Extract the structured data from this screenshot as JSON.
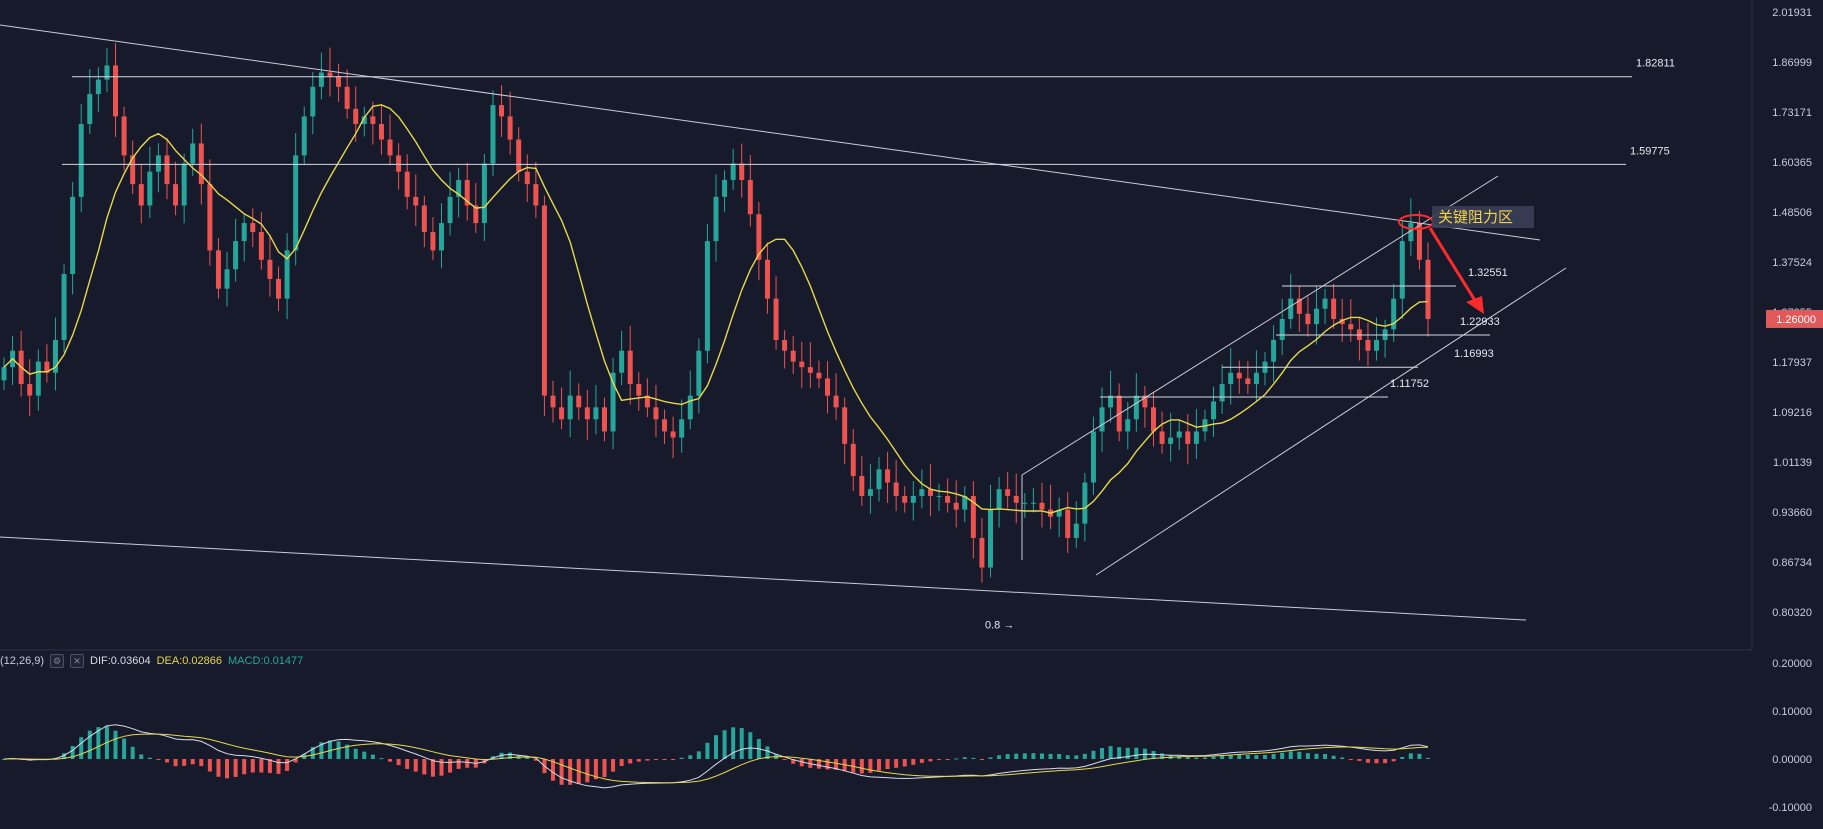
{
  "chart_data": [
    {
      "type": "candlestick",
      "title": "",
      "price_axis": {
        "ticks": [
          "2.01931",
          "1.86999",
          "1.73171",
          "1.60365",
          "1.48506",
          "1.37524",
          "1.27355",
          "1.17937",
          "1.09216",
          "1.01139",
          "0.93660",
          "0.86734",
          "0.80320"
        ],
        "current_price": "1.26000",
        "current_color": "#e05a5a"
      },
      "levels": [
        {
          "label": "1.82811",
          "value": 1.82811
        },
        {
          "label": "1.59775",
          "value": 1.59775
        },
        {
          "label": "1.32551",
          "value": 1.32551
        },
        {
          "label": "1.22933",
          "value": 1.22933
        },
        {
          "label": "1.16993",
          "value": 1.16993
        },
        {
          "label": "1.11752",
          "value": 1.11752
        }
      ],
      "low_marker": {
        "label": "0.8 →",
        "value": 0.8
      },
      "annotation": {
        "text": "关键阻力区",
        "color": "#f3d34a"
      },
      "moving_average_color": "#e7d84a",
      "up_color": "#26a69a",
      "down_color": "#ef5350",
      "close_series": [
        1.17,
        1.2,
        1.14,
        1.12,
        1.18,
        1.16,
        1.22,
        1.35,
        1.52,
        1.7,
        1.78,
        1.82,
        1.86,
        1.72,
        1.62,
        1.55,
        1.5,
        1.58,
        1.62,
        1.55,
        1.5,
        1.6,
        1.65,
        1.55,
        1.4,
        1.32,
        1.36,
        1.42,
        1.46,
        1.44,
        1.38,
        1.34,
        1.3,
        1.4,
        1.62,
        1.72,
        1.8,
        1.84,
        1.83,
        1.8,
        1.74,
        1.7,
        1.72,
        1.7,
        1.66,
        1.62,
        1.58,
        1.52,
        1.5,
        1.44,
        1.4,
        1.46,
        1.52,
        1.56,
        1.5,
        1.46,
        1.6,
        1.75,
        1.72,
        1.66,
        1.58,
        1.55,
        1.5,
        1.12,
        1.1,
        1.08,
        1.12,
        1.1,
        1.08,
        1.1,
        1.06,
        1.16,
        1.2,
        1.14,
        1.12,
        1.1,
        1.08,
        1.06,
        1.05,
        1.08,
        1.12,
        1.2,
        1.42,
        1.52,
        1.56,
        1.6,
        1.56,
        1.48,
        1.38,
        1.3,
        1.22,
        1.2,
        1.18,
        1.17,
        1.16,
        1.15,
        1.12,
        1.1,
        1.04,
        0.99,
        0.96,
        0.97,
        1.0,
        0.98,
        0.96,
        0.95,
        0.96,
        0.97,
        0.96,
        0.96,
        0.95,
        0.94,
        0.96,
        0.9,
        0.86,
        0.94,
        0.97,
        0.96,
        0.95,
        0.95,
        0.95,
        0.94,
        0.93,
        0.94,
        0.9,
        0.92,
        0.98,
        1.06,
        1.1,
        1.12,
        1.06,
        1.08,
        1.12,
        1.1,
        1.06,
        1.04,
        1.05,
        1.06,
        1.04,
        1.06,
        1.08,
        1.11,
        1.14,
        1.16,
        1.15,
        1.14,
        1.16,
        1.18,
        1.22,
        1.26,
        1.3,
        1.27,
        1.25,
        1.28,
        1.3,
        1.26,
        1.25,
        1.24,
        1.22,
        1.2,
        1.22,
        1.24,
        1.3,
        1.42,
        1.46,
        1.38,
        1.26
      ],
      "macd": {
        "label": "(12,26,9)",
        "dif_label": "DIF:0.03604",
        "dea_label": "DEA:0.02866",
        "macd_label": "MACD:0.01477",
        "dif_color": "#d9dce6",
        "dea_color": "#e7d84a",
        "hist_up_color": "#26a69a",
        "hist_down_color": "#ef5350",
        "ticks": [
          "0.20000",
          "0.10000",
          "0.00000",
          "-0.10000"
        ]
      }
    }
  ]
}
